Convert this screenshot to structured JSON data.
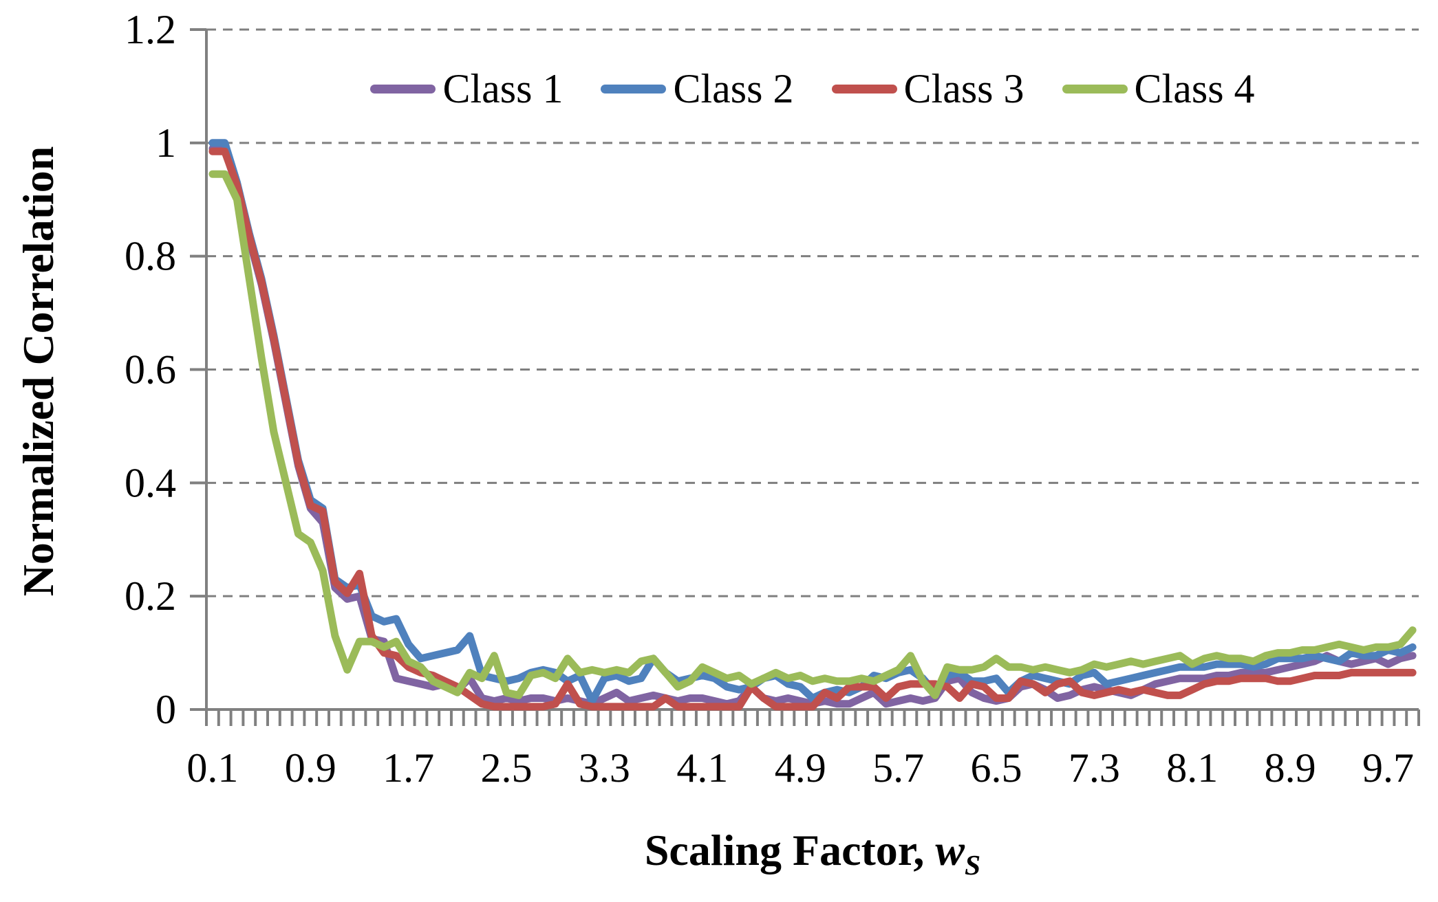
{
  "page": {
    "background": "#ffffff"
  },
  "chart": {
    "ylabel": "Normalized Correlation",
    "xlabel_prefix": "Scaling Factor, ",
    "xlabel_var": "w",
    "xlabel_sub": "S"
  },
  "chart_data": {
    "type": "line",
    "title": "",
    "xlabel": "Scaling Factor, w_S",
    "ylabel": "Normalized Correlation",
    "xlim": [
      0.05,
      9.95
    ],
    "ylim": [
      0,
      1.2
    ],
    "y_ticks": [
      0,
      0.2,
      0.4,
      0.6,
      0.8,
      1,
      1.2
    ],
    "y_tick_labels": [
      "0",
      "0.2",
      "0.4",
      "0.6",
      "0.8",
      "1",
      "1.2"
    ],
    "x_tick_labels": [
      "0.1",
      "0.9",
      "1.7",
      "2.5",
      "3.3",
      "4.1",
      "4.9",
      "5.7",
      "6.5",
      "7.3",
      "8.1",
      "8.9",
      "9.7"
    ],
    "x_label_every_n_points": 8,
    "x_minor_tick_step": 0.1,
    "grid": "horizontal-dashed",
    "legend_position": "top-center-inside",
    "axis_color": "#808080",
    "grid_color": "#7f7f7f",
    "text_color": "#000000",
    "line_width": 11,
    "x": [
      0.1,
      0.2,
      0.3,
      0.4,
      0.5,
      0.6,
      0.7,
      0.8,
      0.9,
      1,
      1.1,
      1.2,
      1.3,
      1.4,
      1.5,
      1.6,
      1.7,
      1.8,
      1.9,
      2,
      2.1,
      2.2,
      2.3,
      2.4,
      2.5,
      2.6,
      2.7,
      2.8,
      2.9,
      3,
      3.1,
      3.2,
      3.3,
      3.4,
      3.5,
      3.6,
      3.7,
      3.8,
      3.9,
      4,
      4.1,
      4.2,
      4.3,
      4.4,
      4.5,
      4.6,
      4.7,
      4.8,
      4.9,
      5,
      5.1,
      5.2,
      5.3,
      5.4,
      5.5,
      5.6,
      5.7,
      5.8,
      5.9,
      6,
      6.1,
      6.2,
      6.3,
      6.4,
      6.5,
      6.6,
      6.7,
      6.8,
      6.9,
      7,
      7.1,
      7.2,
      7.3,
      7.4,
      7.5,
      7.6,
      7.7,
      7.8,
      7.9,
      8,
      8.1,
      8.2,
      8.3,
      8.4,
      8.5,
      8.6,
      8.7,
      8.8,
      8.9,
      9,
      9.1,
      9.2,
      9.3,
      9.4,
      9.5,
      9.6,
      9.7,
      9.8,
      9.9
    ],
    "series": [
      {
        "name": "Class 1",
        "color": "#8064A2",
        "values": [
          0.99,
          0.99,
          0.92,
          0.83,
          0.75,
          0.65,
          0.54,
          0.43,
          0.355,
          0.33,
          0.215,
          0.195,
          0.2,
          0.125,
          0.12,
          0.055,
          0.05,
          0.045,
          0.04,
          0.045,
          0.035,
          0.055,
          0.02,
          0.015,
          0.02,
          0.015,
          0.02,
          0.02,
          0.015,
          0.02,
          0.015,
          0.01,
          0.02,
          0.03,
          0.015,
          0.02,
          0.025,
          0.02,
          0.015,
          0.02,
          0.02,
          0.015,
          0.01,
          0.015,
          0.04,
          0.02,
          0.015,
          0.02,
          0.015,
          0.01,
          0.015,
          0.01,
          0.01,
          0.02,
          0.03,
          0.01,
          0.015,
          0.02,
          0.015,
          0.02,
          0.05,
          0.055,
          0.03,
          0.02,
          0.015,
          0.02,
          0.04,
          0.045,
          0.035,
          0.02,
          0.025,
          0.035,
          0.04,
          0.035,
          0.03,
          0.025,
          0.035,
          0.045,
          0.05,
          0.055,
          0.055,
          0.055,
          0.06,
          0.06,
          0.065,
          0.065,
          0.065,
          0.07,
          0.075,
          0.08,
          0.085,
          0.095,
          0.085,
          0.08,
          0.085,
          0.09,
          0.08,
          0.09,
          0.095
        ]
      },
      {
        "name": "Class 2",
        "color": "#4F81BD",
        "values": [
          1,
          1,
          0.93,
          0.84,
          0.76,
          0.66,
          0.55,
          0.44,
          0.37,
          0.355,
          0.23,
          0.215,
          0.22,
          0.165,
          0.155,
          0.16,
          0.115,
          0.09,
          0.095,
          0.1,
          0.105,
          0.13,
          0.06,
          0.055,
          0.05,
          0.055,
          0.065,
          0.07,
          0.065,
          0.05,
          0.06,
          0.015,
          0.055,
          0.06,
          0.05,
          0.055,
          0.09,
          0.065,
          0.05,
          0.055,
          0.06,
          0.055,
          0.04,
          0.035,
          0.04,
          0.055,
          0.06,
          0.045,
          0.04,
          0.02,
          0.03,
          0.035,
          0.03,
          0.04,
          0.06,
          0.055,
          0.065,
          0.07,
          0.055,
          0.03,
          0.06,
          0.065,
          0.05,
          0.05,
          0.055,
          0.03,
          0.05,
          0.06,
          0.055,
          0.05,
          0.045,
          0.06,
          0.065,
          0.045,
          0.05,
          0.055,
          0.06,
          0.065,
          0.07,
          0.075,
          0.075,
          0.075,
          0.08,
          0.08,
          0.08,
          0.075,
          0.08,
          0.09,
          0.09,
          0.09,
          0.095,
          0.09,
          0.085,
          0.1,
          0.095,
          0.095,
          0.105,
          0.1,
          0.11
        ]
      },
      {
        "name": "Class 3",
        "color": "#C0504D",
        "values": [
          0.985,
          0.985,
          0.925,
          0.835,
          0.755,
          0.655,
          0.545,
          0.435,
          0.36,
          0.35,
          0.225,
          0.205,
          0.24,
          0.13,
          0.1,
          0.095,
          0.075,
          0.065,
          0.06,
          0.05,
          0.04,
          0.025,
          0.01,
          0.005,
          0.005,
          0.005,
          0.005,
          0.005,
          0.01,
          0.045,
          0.01,
          0.005,
          0.005,
          0.005,
          0.005,
          0.005,
          0.005,
          0.02,
          0.005,
          0.005,
          0.005,
          0.005,
          0.005,
          0.005,
          0.04,
          0.02,
          0.005,
          0.005,
          0.005,
          0.005,
          0.03,
          0.02,
          0.04,
          0.04,
          0.04,
          0.02,
          0.04,
          0.045,
          0.045,
          0.045,
          0.04,
          0.02,
          0.045,
          0.04,
          0.02,
          0.02,
          0.05,
          0.045,
          0.03,
          0.045,
          0.05,
          0.03,
          0.025,
          0.03,
          0.035,
          0.03,
          0.035,
          0.03,
          0.025,
          0.025,
          0.035,
          0.045,
          0.05,
          0.05,
          0.055,
          0.055,
          0.055,
          0.05,
          0.05,
          0.055,
          0.06,
          0.06,
          0.06,
          0.065,
          0.065,
          0.065,
          0.065,
          0.065,
          0.065
        ]
      },
      {
        "name": "Class 4",
        "color": "#9BBB59",
        "values": [
          0.945,
          0.945,
          0.9,
          0.76,
          0.62,
          0.49,
          0.4,
          0.31,
          0.295,
          0.245,
          0.13,
          0.07,
          0.12,
          0.12,
          0.11,
          0.12,
          0.085,
          0.075,
          0.05,
          0.04,
          0.03,
          0.065,
          0.055,
          0.095,
          0.03,
          0.025,
          0.06,
          0.065,
          0.055,
          0.09,
          0.065,
          0.07,
          0.065,
          0.07,
          0.065,
          0.085,
          0.09,
          0.065,
          0.04,
          0.05,
          0.075,
          0.065,
          0.055,
          0.06,
          0.045,
          0.055,
          0.065,
          0.055,
          0.06,
          0.05,
          0.055,
          0.05,
          0.05,
          0.055,
          0.05,
          0.06,
          0.07,
          0.095,
          0.05,
          0.025,
          0.075,
          0.07,
          0.07,
          0.075,
          0.09,
          0.075,
          0.075,
          0.07,
          0.075,
          0.07,
          0.065,
          0.07,
          0.08,
          0.075,
          0.08,
          0.085,
          0.08,
          0.085,
          0.09,
          0.095,
          0.08,
          0.09,
          0.095,
          0.09,
          0.09,
          0.085,
          0.095,
          0.1,
          0.1,
          0.105,
          0.105,
          0.11,
          0.115,
          0.11,
          0.105,
          0.11,
          0.11,
          0.115,
          0.14
        ]
      }
    ]
  }
}
